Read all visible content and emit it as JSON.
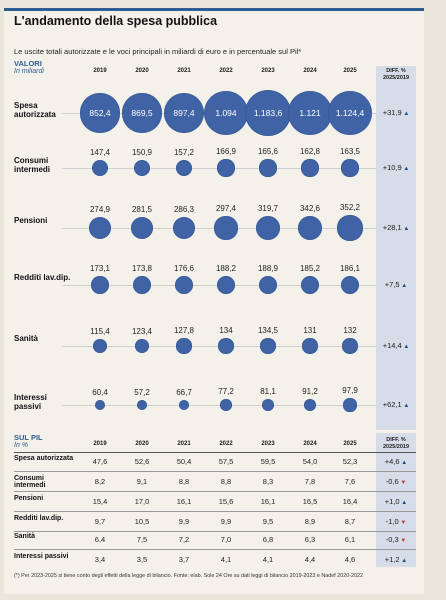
{
  "title": "L'andamento della spesa pubblica",
  "subtitle": "Le uscite totali autorizzate e le voci principali in miliardi di euro e in percentuale sul Pil*",
  "footnote": "(*) Per 2023-2025 si tiene conto degli effetti della legge di bilancio. Fonte: elab. Sole 24 Ore su dati leggi di bilancio 2019-2023 e Nadef 2020-2022",
  "colors": {
    "bubble": "#3f63a5",
    "accent": "#2f5d92",
    "diff_column": "#d6dde8",
    "negative": "#c0392b"
  },
  "chart_data": [
    {
      "type": "bubble",
      "section_label": "VALORI",
      "section_sub": "In miliardi",
      "diff_header": [
        "DIFF. %",
        "2025/2019"
      ],
      "x": [
        "2019",
        "2020",
        "2021",
        "2022",
        "2023",
        "2024",
        "2025"
      ],
      "series": [
        {
          "name": "Spesa autorizzata",
          "labels": [
            "852,4",
            "869,5",
            "897,4",
            "1.094",
            "1.183,6",
            "1.121",
            "1.124,4"
          ],
          "values": [
            852.4,
            869.5,
            897.4,
            1094,
            1183.6,
            1121,
            1124.4
          ],
          "diff": "+31,9",
          "trend": "up"
        },
        {
          "name": "Consumi intermedi",
          "labels": [
            "147,4",
            "150,9",
            "157,2",
            "166,9",
            "165,6",
            "162,8",
            "163,5"
          ],
          "values": [
            147.4,
            150.9,
            157.2,
            166.9,
            165.6,
            162.8,
            163.5
          ],
          "diff": "+10,9",
          "trend": "up"
        },
        {
          "name": "Pensioni",
          "labels": [
            "274,9",
            "281,5",
            "286,3",
            "297,4",
            "319,7",
            "342,6",
            "352,2"
          ],
          "values": [
            274.9,
            281.5,
            286.3,
            297.4,
            319.7,
            342.6,
            352.2
          ],
          "diff": "+28,1",
          "trend": "up"
        },
        {
          "name": "Redditi lav.dip.",
          "labels": [
            "173,1",
            "173,8",
            "176,6",
            "188,2",
            "188,9",
            "185,2",
            "186,1"
          ],
          "values": [
            173.1,
            173.8,
            176.6,
            188.2,
            188.9,
            185.2,
            186.1
          ],
          "diff": "+7,5",
          "trend": "up"
        },
        {
          "name": "Sanità",
          "labels": [
            "115,4",
            "123,4",
            "127,8",
            "134",
            "134,5",
            "131",
            "132"
          ],
          "values": [
            115.4,
            123.4,
            127.8,
            134,
            134.5,
            131,
            132
          ],
          "diff": "+14,4",
          "trend": "up"
        },
        {
          "name": "Interessi passivi",
          "labels": [
            "60,4",
            "57,2",
            "66,7",
            "77,2",
            "81,1",
            "91,2",
            "97,9"
          ],
          "values": [
            60.4,
            57.2,
            66.7,
            77.2,
            81.1,
            91.2,
            97.9
          ],
          "diff": "+62,1",
          "trend": "up"
        }
      ]
    },
    {
      "type": "table",
      "section_label": "SUL PIL",
      "section_sub": "In %",
      "diff_header": [
        "DIFF. %",
        "2025/2019"
      ],
      "x": [
        "2019",
        "2020",
        "2021",
        "2022",
        "2023",
        "2024",
        "2025"
      ],
      "rows": [
        {
          "name": "Spesa autorizzata",
          "values": [
            "47,6",
            "52,6",
            "50,4",
            "57,5",
            "59,5",
            "54,0",
            "52,3"
          ],
          "diff": "+4,6",
          "trend": "up"
        },
        {
          "name": "Consumi intermedi",
          "values": [
            "8,2",
            "9,1",
            "8,8",
            "8,8",
            "8,3",
            "7,8",
            "7,6"
          ],
          "diff": "-0,6",
          "trend": "down"
        },
        {
          "name": "Pensioni",
          "values": [
            "15,4",
            "17,0",
            "16,1",
            "15,6",
            "16,1",
            "16,5",
            "16,4"
          ],
          "diff": "+1,0",
          "trend": "up"
        },
        {
          "name": "Redditi lav.dip.",
          "values": [
            "9,7",
            "10,5",
            "9,9",
            "9,9",
            "9,5",
            "8,9",
            "8,7"
          ],
          "diff": "-1,0",
          "trend": "down"
        },
        {
          "name": "Sanità",
          "values": [
            "6,4",
            "7,5",
            "7,2",
            "7,0",
            "6,8",
            "6,3",
            "6,1"
          ],
          "diff": "-0,3",
          "trend": "down"
        },
        {
          "name": "Interessi passivi",
          "values": [
            "3,4",
            "3,5",
            "3,7",
            "4,1",
            "4,1",
            "4,4",
            "4,6"
          ],
          "diff": "+1,2",
          "trend": "up"
        }
      ]
    }
  ]
}
